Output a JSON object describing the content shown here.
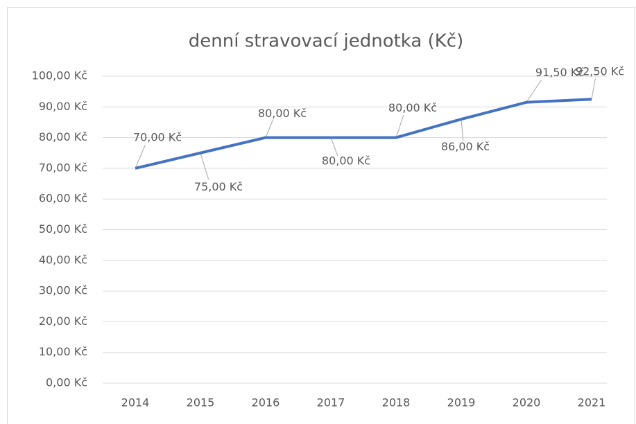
{
  "chart_data": {
    "type": "line",
    "title": "denní stravovací jednotka (Kč)",
    "categories": [
      "2014",
      "2015",
      "2016",
      "2017",
      "2018",
      "2019",
      "2020",
      "2021"
    ],
    "series": [
      {
        "name": "denní stravovací jednotka (Kč)",
        "color": "#4472c4",
        "values": [
          70,
          75,
          80,
          80,
          80,
          86,
          91.5,
          92.5
        ],
        "value_labels": [
          "70,00 Kč",
          "75,00 Kč",
          "80,00 Kč",
          "80,00 Kč",
          "80,00 Kč",
          "86,00 Kč",
          "91,50 Kč",
          "92,50 Kč"
        ]
      }
    ],
    "ylim": [
      0,
      100
    ],
    "yticks": [
      {
        "value": 0,
        "label": "0,00 Kč"
      },
      {
        "value": 10,
        "label": "10,00 Kč"
      },
      {
        "value": 20,
        "label": "20,00 Kč"
      },
      {
        "value": 30,
        "label": "30,00 Kč"
      },
      {
        "value": 40,
        "label": "40,00 Kč"
      },
      {
        "value": 50,
        "label": "50,00 Kč"
      },
      {
        "value": 60,
        "label": "60,00 Kč"
      },
      {
        "value": 70,
        "label": "70,00 Kč"
      },
      {
        "value": 80,
        "label": "80,00 Kč"
      },
      {
        "value": 90,
        "label": "90,00 Kč"
      },
      {
        "value": 100,
        "label": "100,00 Kč"
      }
    ],
    "grid": true
  }
}
